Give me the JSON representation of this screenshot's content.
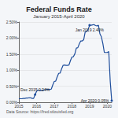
{
  "chart_data": {
    "type": "line",
    "title": "Federal Funds Rate",
    "subtitle": "January 2015-April 2020",
    "source": "Data Source: https://fred.stlouisfed.org",
    "categories": [
      "2015",
      null,
      null,
      null,
      null,
      null,
      null,
      null,
      null,
      null,
      null,
      null,
      "2016",
      null,
      null,
      null,
      null,
      null,
      null,
      null,
      null,
      null,
      null,
      null,
      "2017",
      null,
      null,
      null,
      null,
      null,
      null,
      null,
      null,
      null,
      null,
      null,
      "2018",
      null,
      null,
      null,
      null,
      null,
      null,
      null,
      null,
      null,
      null,
      null,
      "2019",
      null,
      null,
      null,
      null,
      null,
      null,
      null,
      null,
      null,
      null,
      null,
      "2020",
      null,
      null,
      null
    ],
    "series": [
      {
        "name": "Federal Funds Rate",
        "color": "#1f4e9c",
        "line_style": "solid",
        "values": [
          0.11,
          0.11,
          0.11,
          0.12,
          0.12,
          0.13,
          0.13,
          0.14,
          0.14,
          0.12,
          0.12,
          0.24,
          0.34,
          0.38,
          0.36,
          0.37,
          0.37,
          0.38,
          0.39,
          0.4,
          0.4,
          0.4,
          0.41,
          0.54,
          0.65,
          0.66,
          0.79,
          0.9,
          0.91,
          1.04,
          1.15,
          1.16,
          1.15,
          1.15,
          1.16,
          1.3,
          1.41,
          1.42,
          1.51,
          1.69,
          1.7,
          1.82,
          1.91,
          1.91,
          1.95,
          2.19,
          2.2,
          2.27,
          2.4,
          2.4,
          2.41,
          2.42,
          2.39,
          2.38,
          2.4,
          2.13,
          2.04,
          1.83,
          1.55,
          1.55,
          1.55,
          1.58,
          0.65,
          0.05
        ]
      }
    ],
    "annotations": [
      {
        "text": "Dec 2015 0.24%",
        "at": 11,
        "value": 0.24
      },
      {
        "text": "Jan 2019 2.40%",
        "at": 48,
        "value": 2.4
      },
      {
        "text": "Apr 2020 0.05%",
        "at": 63,
        "value": 0.05
      }
    ],
    "ylim": [
      0,
      2.5
    ],
    "yticks": [
      {
        "value": 0,
        "label": "0.00%"
      },
      {
        "value": 0.5,
        "label": "0.50%"
      },
      {
        "value": 1,
        "label": "1.00%"
      },
      {
        "value": 1.5,
        "label": "1.50%"
      },
      {
        "value": 2,
        "label": "2.00%"
      },
      {
        "value": 2.5,
        "label": "2.50%"
      }
    ],
    "grid": true
  }
}
